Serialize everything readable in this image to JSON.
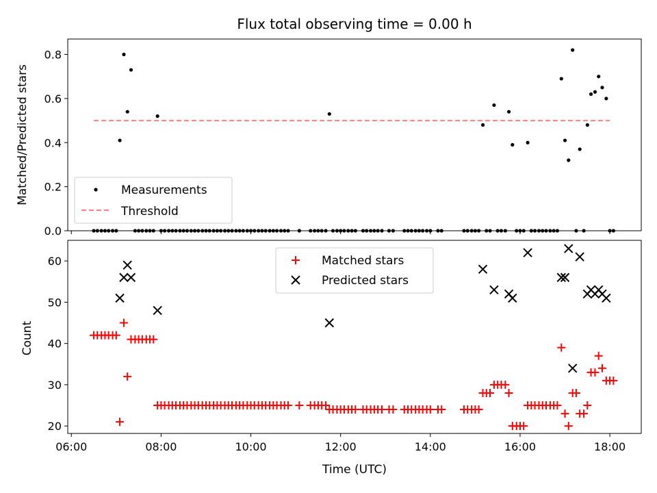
{
  "chart_data": [
    {
      "type": "scatter",
      "title": "Flux total observing time = 0.00 h",
      "xlabel": "",
      "ylabel": "Matched/Predicted stars",
      "xlim": [
        5.92,
        18.7
      ],
      "ylim": [
        0,
        0.87
      ],
      "xticks": [
        6,
        8,
        10,
        12,
        14,
        16,
        18
      ],
      "yticks": [
        0.0,
        0.2,
        0.4,
        0.6,
        0.8
      ],
      "ytick_labels": [
        "0.0",
        "0.2",
        "0.4",
        "0.6",
        "0.8"
      ],
      "legend_position": "lower-left",
      "series": [
        {
          "name": "Measurements",
          "marker": "dot",
          "color": "#000000",
          "x": [
            6.5,
            6.58,
            6.67,
            6.75,
            6.83,
            6.92,
            7.0,
            7.08,
            7.17,
            7.25,
            7.33,
            7.42,
            7.5,
            7.58,
            7.67,
            7.75,
            7.83,
            7.92,
            8.0,
            8.08,
            8.17,
            8.25,
            8.33,
            8.42,
            8.5,
            8.58,
            8.67,
            8.75,
            8.83,
            8.92,
            9.0,
            9.08,
            9.17,
            9.25,
            9.33,
            9.42,
            9.5,
            9.58,
            9.67,
            9.75,
            9.83,
            9.92,
            10.0,
            10.08,
            10.17,
            10.25,
            10.33,
            10.42,
            10.5,
            10.58,
            10.67,
            10.75,
            10.83,
            11.08,
            11.33,
            11.42,
            11.5,
            11.58,
            11.67,
            11.75,
            11.83,
            11.92,
            12.0,
            12.08,
            12.17,
            12.25,
            12.33,
            12.5,
            12.58,
            12.67,
            12.75,
            12.83,
            12.92,
            13.08,
            13.17,
            13.42,
            13.5,
            13.58,
            13.67,
            13.75,
            13.83,
            13.92,
            14.0,
            14.17,
            14.25,
            14.75,
            14.83,
            14.92,
            15.0,
            15.08,
            15.17,
            15.25,
            15.33,
            15.42,
            15.5,
            15.58,
            15.67,
            15.75,
            15.83,
            15.92,
            16.0,
            16.08,
            16.17,
            16.25,
            16.33,
            16.42,
            16.5,
            16.58,
            16.67,
            16.75,
            16.83,
            16.92,
            17.0,
            17.08,
            17.17,
            17.25,
            17.33,
            17.42,
            17.5,
            17.58,
            17.67,
            17.75,
            17.83,
            17.92,
            18.0,
            18.08
          ],
          "y": [
            0,
            0,
            0,
            0,
            0,
            0,
            0,
            0.41,
            0.8,
            0.54,
            0.73,
            0,
            0,
            0,
            0,
            0,
            0,
            0.52,
            0,
            0,
            0,
            0,
            0,
            0,
            0,
            0,
            0,
            0,
            0,
            0,
            0,
            0,
            0,
            0,
            0,
            0,
            0,
            0,
            0,
            0,
            0,
            0,
            0,
            0,
            0,
            0,
            0,
            0,
            0,
            0,
            0,
            0,
            0,
            0,
            0,
            0,
            0,
            0,
            0,
            0.53,
            0,
            0,
            0,
            0,
            0,
            0,
            0,
            0,
            0,
            0,
            0,
            0,
            0,
            0,
            0,
            0,
            0,
            0,
            0,
            0,
            0,
            0,
            0,
            0,
            0,
            0,
            0,
            0,
            0,
            0,
            0.48,
            0,
            0,
            0.57,
            0,
            0,
            0,
            0.54,
            0.39,
            0,
            0,
            0,
            0.4,
            0,
            0,
            0,
            0,
            0,
            0,
            0,
            0,
            0.69,
            0.41,
            0.32,
            0.82,
            0,
            0.37,
            0,
            0.48,
            0.62,
            0.63,
            0.7,
            0.65,
            0.6,
            0,
            0
          ]
        },
        {
          "name": "Threshold",
          "style": "dashed",
          "color": "#ff7f7f",
          "x": [
            6.5,
            18.0
          ],
          "y": [
            0.5,
            0.5
          ]
        }
      ]
    },
    {
      "type": "scatter",
      "title": "",
      "xlabel": "Time (UTC)",
      "ylabel": "Count",
      "xlim": [
        5.92,
        18.7
      ],
      "ylim": [
        18.2,
        65
      ],
      "xticks": [
        6,
        8,
        10,
        12,
        14,
        16,
        18
      ],
      "xtick_labels": [
        "06:00",
        "08:00",
        "10:00",
        "12:00",
        "14:00",
        "16:00",
        "18:00"
      ],
      "yticks": [
        20,
        30,
        40,
        50,
        60
      ],
      "ytick_labels": [
        "20",
        "30",
        "40",
        "50",
        "60"
      ],
      "legend_position": "upper-center",
      "series": [
        {
          "name": "Matched stars",
          "marker": "plus",
          "color": "#ff0000",
          "x": [
            6.5,
            6.58,
            6.67,
            6.75,
            6.83,
            6.92,
            7.0,
            7.08,
            7.17,
            7.25,
            7.33,
            7.42,
            7.5,
            7.58,
            7.67,
            7.75,
            7.83,
            7.92,
            8.0,
            8.08,
            8.17,
            8.25,
            8.33,
            8.42,
            8.5,
            8.58,
            8.67,
            8.75,
            8.83,
            8.92,
            9.0,
            9.08,
            9.17,
            9.25,
            9.33,
            9.42,
            9.5,
            9.58,
            9.67,
            9.75,
            9.83,
            9.92,
            10.0,
            10.08,
            10.17,
            10.25,
            10.33,
            10.42,
            10.5,
            10.58,
            10.67,
            10.75,
            10.83,
            11.08,
            11.33,
            11.42,
            11.5,
            11.58,
            11.67,
            11.75,
            11.83,
            11.92,
            12.0,
            12.08,
            12.17,
            12.25,
            12.33,
            12.5,
            12.58,
            12.67,
            12.75,
            12.83,
            12.92,
            13.08,
            13.17,
            13.42,
            13.5,
            13.58,
            13.67,
            13.75,
            13.83,
            13.92,
            14.0,
            14.17,
            14.25,
            14.75,
            14.83,
            14.92,
            15.0,
            15.08,
            15.17,
            15.25,
            15.33,
            15.42,
            15.5,
            15.58,
            15.67,
            15.75,
            15.83,
            15.92,
            16.0,
            16.08,
            16.17,
            16.25,
            16.33,
            16.42,
            16.5,
            16.58,
            16.67,
            16.75,
            16.83,
            16.92,
            17.0,
            17.08,
            17.17,
            17.25,
            17.33,
            17.42,
            17.5,
            17.58,
            17.67,
            17.75,
            17.83,
            17.92,
            18.0,
            18.08
          ],
          "y": [
            42,
            42,
            42,
            42,
            42,
            42,
            42,
            21,
            45,
            32,
            41,
            41,
            41,
            41,
            41,
            41,
            41,
            25,
            25,
            25,
            25,
            25,
            25,
            25,
            25,
            25,
            25,
            25,
            25,
            25,
            25,
            25,
            25,
            25,
            25,
            25,
            25,
            25,
            25,
            25,
            25,
            25,
            25,
            25,
            25,
            25,
            25,
            25,
            25,
            25,
            25,
            25,
            25,
            25,
            25,
            25,
            25,
            25,
            25,
            24,
            24,
            24,
            24,
            24,
            24,
            24,
            24,
            24,
            24,
            24,
            24,
            24,
            24,
            24,
            24,
            24,
            24,
            24,
            24,
            24,
            24,
            24,
            24,
            24,
            24,
            24,
            24,
            24,
            24,
            24,
            28,
            28,
            28,
            30,
            30,
            30,
            30,
            28,
            20,
            20,
            20,
            20,
            25,
            25,
            25,
            25,
            25,
            25,
            25,
            25,
            25,
            39,
            23,
            20,
            28,
            28,
            23,
            23,
            25,
            33,
            33,
            37,
            34,
            31,
            31,
            31
          ]
        },
        {
          "name": "Predicted stars",
          "marker": "x",
          "color": "#000000",
          "x": [
            7.08,
            7.17,
            7.25,
            7.33,
            7.92,
            11.75,
            15.17,
            15.42,
            15.75,
            15.83,
            16.17,
            16.92,
            17.0,
            17.08,
            17.17,
            17.33,
            17.5,
            17.58,
            17.67,
            17.75,
            17.83,
            17.92
          ],
          "y": [
            51,
            56,
            59,
            56,
            48,
            45,
            58,
            53,
            52,
            51,
            62,
            56,
            56,
            63,
            34,
            61,
            52,
            53,
            52,
            53,
            52,
            51
          ]
        }
      ]
    }
  ]
}
